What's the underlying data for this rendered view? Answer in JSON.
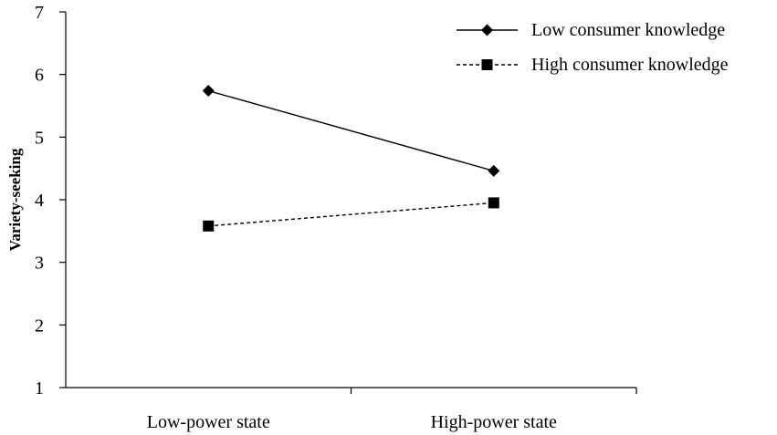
{
  "chart_data": {
    "type": "line",
    "categories": [
      "Low-power state",
      "High-power state"
    ],
    "series": [
      {
        "name": "Low consumer knowledge",
        "values": [
          5.74,
          4.46
        ],
        "marker": "diamond",
        "line_style": "solid",
        "color": "#000000"
      },
      {
        "name": "High consumer knowledge",
        "values": [
          3.58,
          3.95
        ],
        "marker": "square",
        "line_style": "dashed",
        "color": "#000000"
      }
    ],
    "xlabel": "",
    "ylabel": "Variety-seeking",
    "ylim": [
      1,
      7
    ],
    "yticks": [
      1,
      2,
      3,
      4,
      5,
      6,
      7
    ],
    "grid": false,
    "legend_position": "top-right"
  }
}
